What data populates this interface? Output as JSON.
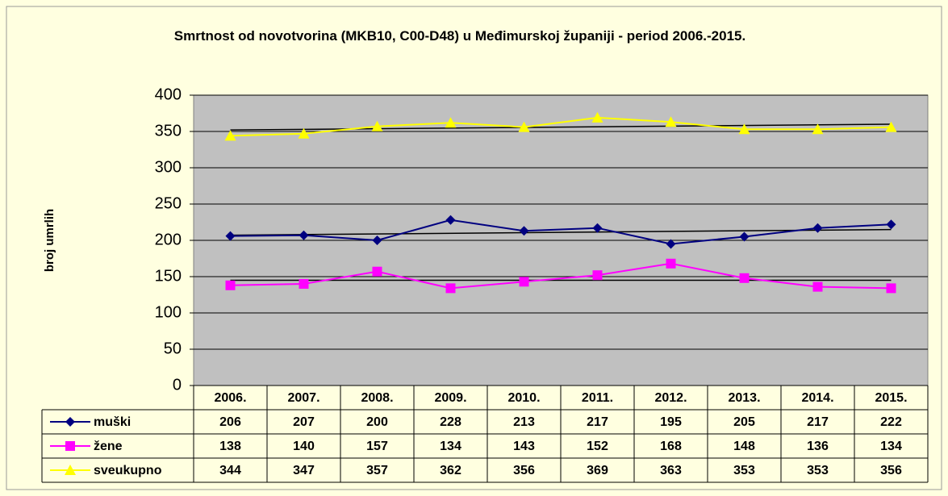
{
  "chart_data": {
    "type": "line",
    "title": "Smrtnost od novotvorina (MKB10, C00-D48) u Međimurskoj županiji - period 2006.-2015.",
    "y_label": "broj umrlih",
    "categories": [
      "2006.",
      "2007.",
      "2008.",
      "2009.",
      "2010.",
      "2011.",
      "2012.",
      "2013.",
      "2014.",
      "2015."
    ],
    "series": [
      {
        "name": "muški",
        "color": "#000080",
        "marker": "diamond",
        "values": [
          206,
          207,
          200,
          228,
          213,
          217,
          195,
          205,
          217,
          222
        ]
      },
      {
        "name": "žene",
        "color": "#ff00ff",
        "marker": "square",
        "values": [
          138,
          140,
          157,
          134,
          143,
          152,
          168,
          148,
          136,
          134
        ]
      },
      {
        "name": "sveukupno",
        "color": "#ffff00",
        "marker": "triangle",
        "values": [
          344,
          347,
          357,
          362,
          356,
          369,
          363,
          353,
          353,
          356
        ]
      }
    ],
    "ylim": [
      0,
      400
    ],
    "yticks": [
      0,
      50,
      100,
      150,
      200,
      250,
      300,
      350,
      400
    ],
    "grid": true,
    "trendline": true,
    "data_table": true
  }
}
